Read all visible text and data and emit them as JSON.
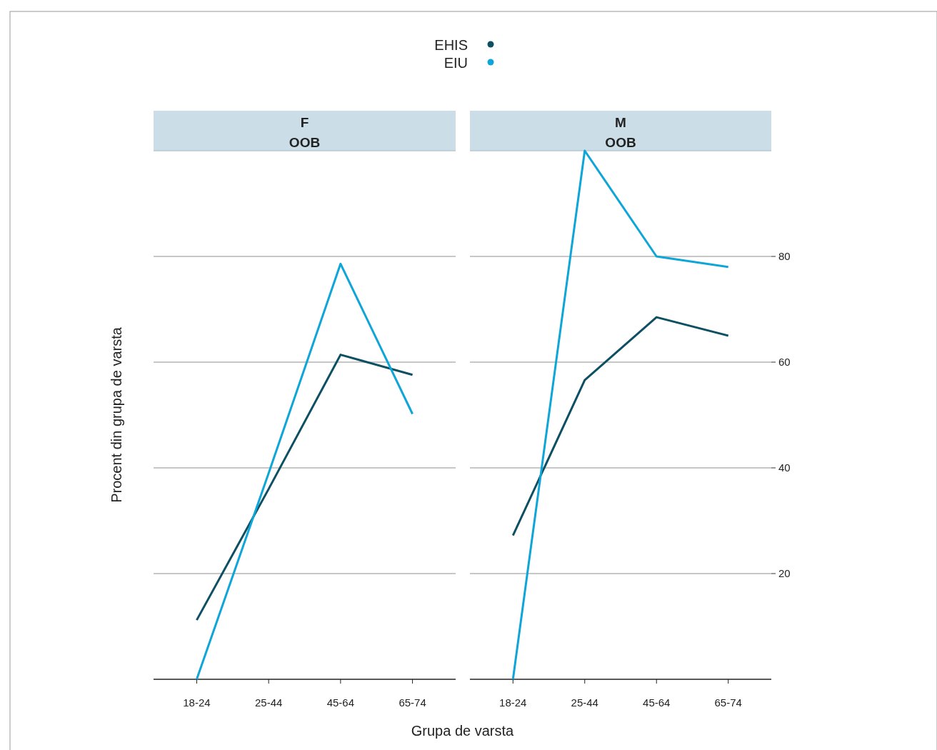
{
  "chart_data": [
    {
      "type": "line",
      "title": "F",
      "subtitle": "OOB",
      "xlabel": "Grupa de varsta",
      "ylabel": "Procent din grupa de varsta",
      "categories": [
        "18-24",
        "25-44",
        "45-64",
        "65-74"
      ],
      "series": [
        {
          "name": "EHIS",
          "color": "#0d4f63",
          "values": [
            11.2,
            36,
            61.4,
            57.6
          ]
        },
        {
          "name": "EIU",
          "color": "#0ea5d8",
          "values": [
            0,
            39,
            78.6,
            50.2
          ]
        }
      ],
      "ylim": [
        0,
        100
      ],
      "yticks": [
        20,
        40,
        60,
        80
      ],
      "grid": "y",
      "legend": "top",
      "marker": "none",
      "line_style": "solid",
      "tick_labels": "x"
    },
    {
      "type": "line",
      "title": "M",
      "subtitle": "OOB",
      "categories": [
        "18-24",
        "25-44",
        "45-64",
        "65-74"
      ],
      "series": [
        {
          "name": "EHIS",
          "color": "#0d4f63",
          "values": [
            27.2,
            56.6,
            68.5,
            65
          ]
        },
        {
          "name": "EIU",
          "color": "#0ea5d8",
          "values": [
            0,
            100,
            80,
            78
          ]
        }
      ],
      "ylim": [
        0,
        100
      ],
      "yticks": [
        20,
        40,
        60,
        80
      ],
      "grid": "y",
      "marker": "none",
      "line_style": "solid"
    }
  ]
}
